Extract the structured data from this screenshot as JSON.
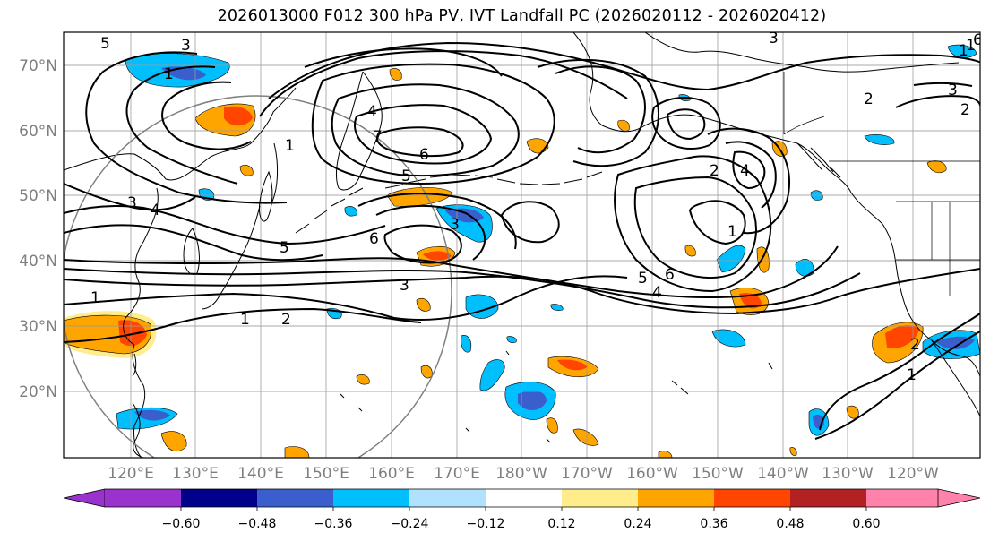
{
  "title": "2026013000 F012 300 hPa PV, IVT Landfall PC (2026020112 - 2026020412)",
  "lat_labels": [
    "70°N",
    "60°N",
    "50°N",
    "40°N",
    "30°N",
    "20°N"
  ],
  "lon_labels": [
    "120°E",
    "130°E",
    "140°E",
    "150°E",
    "160°E",
    "170°E",
    "180°W",
    "170°W",
    "160°W",
    "150°W",
    "140°W",
    "130°W",
    "120°W"
  ],
  "colorbar": {
    "ticks": [
      "−0.60",
      "−0.48",
      "−0.36",
      "−0.24",
      "−0.12",
      "0.12",
      "0.24",
      "0.36",
      "0.48",
      "0.60"
    ],
    "colors": [
      "#9a32cd",
      "#00008b",
      "#3a5fcd",
      "#00bfff",
      "#b0e2ff",
      "#ffffff",
      "#ffec8b",
      "#ffa500",
      "#ff4500",
      "#b22222",
      "#ff82ab"
    ]
  },
  "pv_contour_labels": [
    "1",
    "1",
    "1",
    "1",
    "1",
    "1",
    "1",
    "1",
    "2",
    "2",
    "2",
    "2",
    "2",
    "3",
    "3",
    "3",
    "3",
    "3",
    "3",
    "4",
    "4",
    "4",
    "4",
    "5",
    "5",
    "5",
    "5",
    "6",
    "6",
    "6",
    "6",
    "7"
  ]
}
